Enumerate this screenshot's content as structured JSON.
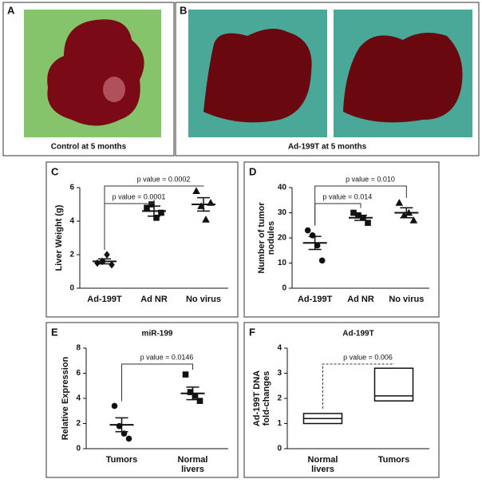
{
  "photos": [
    {
      "label": "A",
      "caption": "Control at 5 months"
    },
    {
      "label": "B",
      "caption": "Ad-199T  at 5 months"
    }
  ],
  "chart_data": [
    {
      "type": "dotplot",
      "label": "C",
      "y_label": [
        "Liver Weight (g)"
      ],
      "categories": [
        [
          "Ad-199T"
        ],
        [
          "Ad NR"
        ],
        [
          "No virus"
        ]
      ],
      "markers": [
        "diamond",
        "square",
        "triangle"
      ],
      "points": [
        [
          1.5,
          1.6,
          2.0,
          1.4
        ],
        [
          4.8,
          5.0,
          4.2,
          4.5
        ],
        [
          5.8,
          4.9,
          4.1,
          5.1
        ]
      ],
      "means": [
        1.6,
        4.6,
        5.0
      ],
      "errors": [
        0.15,
        0.3,
        0.4
      ],
      "comparisons": [
        "p value = 0.0001",
        "p value = 0.0002"
      ],
      "ylim": [
        0,
        6
      ],
      "yticks": [
        0,
        2,
        4,
        6
      ]
    },
    {
      "type": "dotplot",
      "label": "D",
      "y_label": [
        "Number of tumor",
        "nodules"
      ],
      "categories": [
        [
          "Ad-199T"
        ],
        [
          "Ad NR"
        ],
        [
          "No virus"
        ]
      ],
      "markers": [
        "circle",
        "square",
        "triangle"
      ],
      "points": [
        [
          23,
          21,
          17,
          11
        ],
        [
          30,
          29,
          28,
          26
        ],
        [
          34,
          29,
          30,
          27
        ]
      ],
      "means": [
        18,
        28,
        30
      ],
      "errors": [
        2.6,
        1.0,
        2.0
      ],
      "comparisons": [
        "p value = 0.014",
        "p value = 0.010"
      ],
      "ylim": [
        0,
        40
      ],
      "yticks": [
        0,
        10,
        20,
        30,
        40
      ]
    },
    {
      "type": "dotplot",
      "label": "E",
      "title": "miR-199",
      "y_label": [
        "Relative Expression"
      ],
      "categories": [
        [
          "Tumors"
        ],
        [
          "Normal",
          "livers"
        ]
      ],
      "markers": [
        "circle",
        "square"
      ],
      "points": [
        [
          3.4,
          1.8,
          1.2,
          0.8
        ],
        [
          5.9,
          4.5,
          4.2,
          3.8
        ]
      ],
      "means": [
        1.9,
        4.4
      ],
      "errors": [
        0.55,
        0.5
      ],
      "comparisons": [
        "p value = 0.0146"
      ],
      "ylim": [
        0,
        8
      ],
      "yticks": [
        0,
        2,
        4,
        6,
        8
      ]
    },
    {
      "type": "box",
      "label": "F",
      "title": "Ad-199T",
      "y_label": [
        "Ad-199T DNA",
        "fold-changes"
      ],
      "categories": [
        [
          "Normal",
          "livers"
        ],
        [
          "Tumors"
        ]
      ],
      "q1": [
        1.0,
        1.9
      ],
      "median": [
        1.2,
        2.1
      ],
      "q3": [
        1.4,
        3.2
      ],
      "comparisons": [
        "p value = 0.006"
      ],
      "ylim": [
        0,
        4
      ],
      "yticks": [
        0,
        1,
        2,
        3,
        4
      ]
    }
  ]
}
